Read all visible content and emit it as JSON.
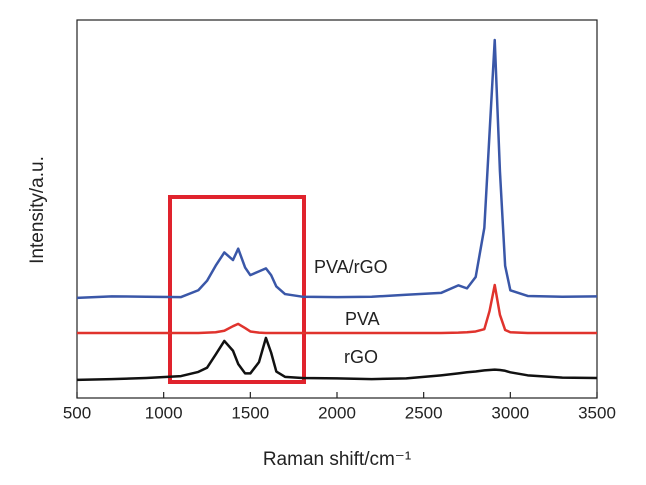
{
  "chart_data": {
    "type": "line",
    "x_label": "Raman shift/cm⁻¹",
    "y_label": "Intensity/a.u.",
    "x": [
      500,
      700,
      900,
      1100,
      1200,
      1250,
      1300,
      1350,
      1400,
      1430,
      1470,
      1500,
      1550,
      1590,
      1620,
      1650,
      1700,
      1800,
      2000,
      2200,
      2400,
      2600,
      2700,
      2750,
      2800,
      2850,
      2880,
      2910,
      2940,
      2970,
      3000,
      3100,
      3300,
      3500
    ],
    "series": [
      {
        "name": "PVA/rGO",
        "color": "#3a57a8",
        "values": [
          26.5,
          26.9,
          26.8,
          26.7,
          28.5,
          31,
          35,
          38.5,
          36.5,
          39.5,
          34.5,
          32.5,
          33.5,
          34.3,
          32.5,
          29.5,
          27.5,
          26.8,
          26.7,
          26.8,
          27.3,
          27.8,
          29.8,
          29,
          32,
          45,
          70,
          94.7,
          60,
          35,
          28.5,
          27,
          26.8,
          26.9
        ]
      },
      {
        "name": "PVA",
        "color": "#e0332d",
        "values": [
          17.2,
          17.2,
          17.2,
          17.2,
          17.2,
          17.3,
          17.4,
          17.8,
          19,
          19.6,
          18.5,
          17.6,
          17.3,
          17.2,
          17.2,
          17.2,
          17.2,
          17.2,
          17.2,
          17.2,
          17.2,
          17.2,
          17.3,
          17.4,
          17.6,
          18.2,
          23,
          29.9,
          22,
          18,
          17.4,
          17.2,
          17.2,
          17.2
        ]
      },
      {
        "name": "rGO",
        "color": "#111111",
        "values": [
          4.8,
          5.0,
          5.3,
          5.8,
          6.9,
          8,
          11.5,
          15.1,
          12.5,
          9,
          6.5,
          6.5,
          9.5,
          15.9,
          12,
          7,
          5.6,
          5.3,
          5.2,
          5.0,
          5.2,
          6,
          6.5,
          6.8,
          7,
          7.3,
          7.4,
          7.5,
          7.4,
          7.2,
          6.8,
          6,
          5.4,
          5.3
        ]
      }
    ],
    "xlim": [
      500,
      3500
    ],
    "xticks": [
      500,
      1000,
      1500,
      2000,
      2500,
      3000,
      3500
    ],
    "ylim": [
      0,
      100
    ]
  }
}
